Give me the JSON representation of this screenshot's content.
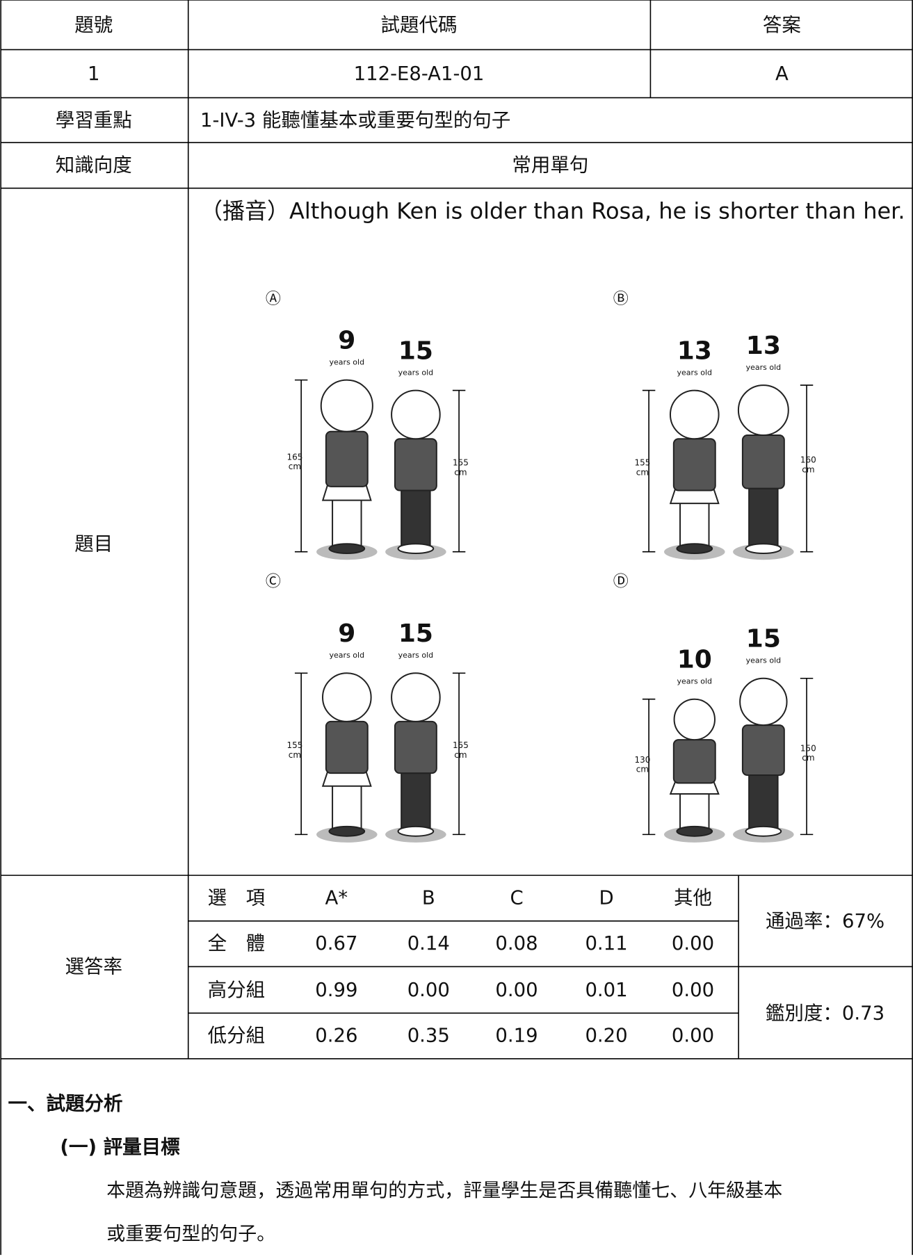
{
  "table": {
    "header": [
      "題號",
      "試題代碼",
      "答案"
    ],
    "row": [
      "1",
      "112-E8-A1-01",
      "A"
    ],
    "learning_focus": {
      "label": "學習重點",
      "value": "1-IV-3 能聽懂基本或重要句型的句子"
    },
    "knowledge": {
      "label": "知識向度",
      "value": "常用單句"
    },
    "question": {
      "label": "題目",
      "prompt": "（播音）Although Ken is older than Rosa, he is shorter than her.",
      "options": [
        {
          "letter": "Ⓐ",
          "figures": [
            {
              "age": "9",
              "age_unit": "years old",
              "height": "165",
              "height_unit": "cm"
            },
            {
              "age": "15",
              "age_unit": "years old",
              "height": "155",
              "height_unit": "cm"
            }
          ]
        },
        {
          "letter": "Ⓑ",
          "figures": [
            {
              "age": "13",
              "age_unit": "years old",
              "height": "155",
              "height_unit": "cm"
            },
            {
              "age": "13",
              "age_unit": "years old",
              "height": "160",
              "height_unit": "cm"
            }
          ]
        },
        {
          "letter": "Ⓒ",
          "figures": [
            {
              "age": "9",
              "age_unit": "years old",
              "height": "155",
              "height_unit": "cm"
            },
            {
              "age": "15",
              "age_unit": "years old",
              "height": "155",
              "height_unit": "cm"
            }
          ]
        },
        {
          "letter": "Ⓓ",
          "figures": [
            {
              "age": "10",
              "age_unit": "years old",
              "height": "130",
              "height_unit": "cm"
            },
            {
              "age": "15",
              "age_unit": "years old",
              "height": "150",
              "height_unit": "cm"
            }
          ]
        }
      ]
    },
    "stats": {
      "label": "選答率",
      "columns": [
        "選　項",
        "A*",
        "B",
        "C",
        "D",
        "其他"
      ],
      "rows": [
        [
          "全　體",
          "0.67",
          "0.14",
          "0.08",
          "0.11",
          "0.00"
        ],
        [
          "高分組",
          "0.99",
          "0.00",
          "0.00",
          "0.01",
          "0.00"
        ],
        [
          "低分組",
          "0.26",
          "0.35",
          "0.19",
          "0.20",
          "0.00"
        ]
      ],
      "pass_rate": "通過率：67%",
      "discrimination": "鑑別度：0.73"
    }
  },
  "analysis": {
    "heading": "一、試題分析",
    "subheading": "(一) 評量目標",
    "paragraph": [
      "本題為辨識句意題，透過常用單句的方式，評量學生是否具備聽懂七、八年級基本",
      "或重要句型的句子。"
    ]
  }
}
